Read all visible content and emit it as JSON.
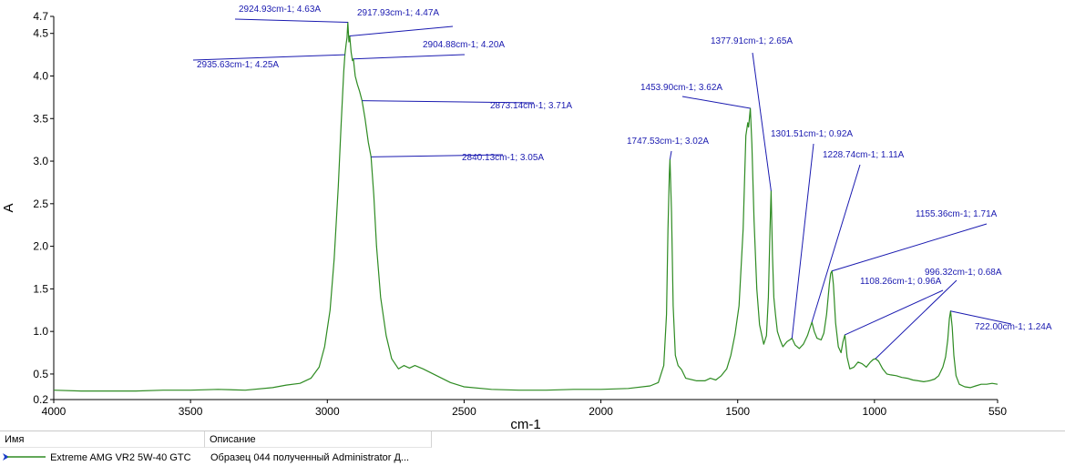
{
  "chart_data": {
    "type": "line",
    "xlabel": "cm-1",
    "ylabel": "A",
    "xlim": [
      4000,
      550
    ],
    "ylim": [
      0.2,
      4.7
    ],
    "x_ticks": [
      4000,
      3500,
      3000,
      2500,
      2000,
      1500,
      1000,
      550
    ],
    "y_ticks": [
      0.2,
      0.5,
      1.0,
      1.5,
      2.0,
      2.5,
      3.0,
      3.5,
      4.0,
      4.5,
      4.7
    ],
    "series": [
      {
        "name": "Extreme AMG VR2 5W-40 GTC",
        "color": "#2e8b22",
        "points": [
          [
            4000,
            0.31
          ],
          [
            3900,
            0.3
          ],
          [
            3800,
            0.3
          ],
          [
            3700,
            0.3
          ],
          [
            3600,
            0.31
          ],
          [
            3500,
            0.31
          ],
          [
            3400,
            0.32
          ],
          [
            3300,
            0.31
          ],
          [
            3200,
            0.34
          ],
          [
            3150,
            0.37
          ],
          [
            3100,
            0.39
          ],
          [
            3060,
            0.45
          ],
          [
            3030,
            0.58
          ],
          [
            3010,
            0.82
          ],
          [
            2990,
            1.25
          ],
          [
            2975,
            1.85
          ],
          [
            2960,
            2.7
          ],
          [
            2950,
            3.4
          ],
          [
            2940,
            4.05
          ],
          [
            2935.63,
            4.25
          ],
          [
            2931,
            4.38
          ],
          [
            2928,
            4.45
          ],
          [
            2924.93,
            4.63
          ],
          [
            2921,
            4.4
          ],
          [
            2917.93,
            4.47
          ],
          [
            2913,
            4.28
          ],
          [
            2908,
            4.18
          ],
          [
            2904.88,
            4.2
          ],
          [
            2898,
            4.0
          ],
          [
            2890,
            3.9
          ],
          [
            2882,
            3.82
          ],
          [
            2873.14,
            3.71
          ],
          [
            2862,
            3.5
          ],
          [
            2850,
            3.22
          ],
          [
            2840.13,
            3.05
          ],
          [
            2830,
            2.6
          ],
          [
            2820,
            2.0
          ],
          [
            2805,
            1.4
          ],
          [
            2785,
            0.95
          ],
          [
            2765,
            0.68
          ],
          [
            2740,
            0.56
          ],
          [
            2720,
            0.6
          ],
          [
            2700,
            0.57
          ],
          [
            2680,
            0.6
          ],
          [
            2650,
            0.56
          ],
          [
            2600,
            0.48
          ],
          [
            2550,
            0.4
          ],
          [
            2500,
            0.35
          ],
          [
            2400,
            0.32
          ],
          [
            2300,
            0.31
          ],
          [
            2200,
            0.31
          ],
          [
            2100,
            0.32
          ],
          [
            2000,
            0.32
          ],
          [
            1900,
            0.33
          ],
          [
            1820,
            0.36
          ],
          [
            1790,
            0.4
          ],
          [
            1770,
            0.6
          ],
          [
            1760,
            1.2
          ],
          [
            1755,
            2.2
          ],
          [
            1750,
            2.85
          ],
          [
            1747.53,
            3.02
          ],
          [
            1742,
            2.4
          ],
          [
            1736,
            1.3
          ],
          [
            1728,
            0.72
          ],
          [
            1718,
            0.6
          ],
          [
            1705,
            0.55
          ],
          [
            1690,
            0.45
          ],
          [
            1650,
            0.42
          ],
          [
            1620,
            0.42
          ],
          [
            1600,
            0.45
          ],
          [
            1580,
            0.43
          ],
          [
            1560,
            0.48
          ],
          [
            1540,
            0.56
          ],
          [
            1525,
            0.72
          ],
          [
            1510,
            0.96
          ],
          [
            1495,
            1.3
          ],
          [
            1480,
            2.2
          ],
          [
            1470,
            3.3
          ],
          [
            1463,
            3.45
          ],
          [
            1460,
            3.4
          ],
          [
            1453.9,
            3.62
          ],
          [
            1448,
            3.2
          ],
          [
            1440,
            2.3
          ],
          [
            1430,
            1.5
          ],
          [
            1420,
            1.08
          ],
          [
            1405,
            0.85
          ],
          [
            1395,
            0.95
          ],
          [
            1388,
            1.4
          ],
          [
            1382,
            2.2
          ],
          [
            1377.91,
            2.65
          ],
          [
            1373,
            1.9
          ],
          [
            1368,
            1.4
          ],
          [
            1362,
            1.2
          ],
          [
            1355,
            1.0
          ],
          [
            1345,
            0.9
          ],
          [
            1335,
            0.82
          ],
          [
            1320,
            0.88
          ],
          [
            1310,
            0.9
          ],
          [
            1301.51,
            0.92
          ],
          [
            1290,
            0.84
          ],
          [
            1275,
            0.8
          ],
          [
            1260,
            0.85
          ],
          [
            1245,
            0.95
          ],
          [
            1235,
            1.05
          ],
          [
            1228.74,
            1.11
          ],
          [
            1220,
            1.0
          ],
          [
            1210,
            0.92
          ],
          [
            1195,
            0.9
          ],
          [
            1185,
            0.98
          ],
          [
            1175,
            1.2
          ],
          [
            1165,
            1.55
          ],
          [
            1160,
            1.68
          ],
          [
            1155.36,
            1.71
          ],
          [
            1150,
            1.55
          ],
          [
            1142,
            1.1
          ],
          [
            1132,
            0.82
          ],
          [
            1122,
            0.75
          ],
          [
            1115,
            0.88
          ],
          [
            1108.26,
            0.96
          ],
          [
            1100,
            0.7
          ],
          [
            1090,
            0.56
          ],
          [
            1075,
            0.58
          ],
          [
            1060,
            0.64
          ],
          [
            1045,
            0.62
          ],
          [
            1030,
            0.58
          ],
          [
            1015,
            0.64
          ],
          [
            1005,
            0.67
          ],
          [
            996.32,
            0.68
          ],
          [
            985,
            0.65
          ],
          [
            970,
            0.56
          ],
          [
            955,
            0.5
          ],
          [
            940,
            0.49
          ],
          [
            920,
            0.48
          ],
          [
            900,
            0.46
          ],
          [
            880,
            0.45
          ],
          [
            860,
            0.43
          ],
          [
            840,
            0.42
          ],
          [
            820,
            0.41
          ],
          [
            800,
            0.42
          ],
          [
            780,
            0.44
          ],
          [
            765,
            0.48
          ],
          [
            750,
            0.58
          ],
          [
            740,
            0.7
          ],
          [
            732,
            0.9
          ],
          [
            726,
            1.15
          ],
          [
            722.0,
            1.24
          ],
          [
            716,
            1.05
          ],
          [
            710,
            0.72
          ],
          [
            702,
            0.48
          ],
          [
            690,
            0.38
          ],
          [
            670,
            0.35
          ],
          [
            650,
            0.34
          ],
          [
            630,
            0.36
          ],
          [
            610,
            0.38
          ],
          [
            590,
            0.38
          ],
          [
            570,
            0.39
          ],
          [
            550,
            0.38
          ]
        ]
      }
    ],
    "annotations": [
      {
        "label": "2924.93cm-1; 4.63A",
        "x": 2924.93,
        "y": 4.63
      },
      {
        "label": "2917.93cm-1; 4.47A",
        "x": 2917.93,
        "y": 4.47
      },
      {
        "label": "2904.88cm-1; 4.20A",
        "x": 2904.88,
        "y": 4.2
      },
      {
        "label": "2935.63cm-1; 4.25A",
        "x": 2935.63,
        "y": 4.25
      },
      {
        "label": "2873.14cm-1; 3.71A",
        "x": 2873.14,
        "y": 3.71
      },
      {
        "label": "2840.13cm-1; 3.05A",
        "x": 2840.13,
        "y": 3.05
      },
      {
        "label": "1377.91cm-1; 2.65A",
        "x": 1377.91,
        "y": 2.65
      },
      {
        "label": "1453.90cm-1; 3.62A",
        "x": 1453.9,
        "y": 3.62
      },
      {
        "label": "1747.53cm-1; 3.02A",
        "x": 1747.53,
        "y": 3.02
      },
      {
        "label": "1301.51cm-1; 0.92A",
        "x": 1301.51,
        "y": 0.92
      },
      {
        "label": "1228.74cm-1; 1.11A",
        "x": 1228.74,
        "y": 1.11
      },
      {
        "label": "1155.36cm-1; 1.71A",
        "x": 1155.36,
        "y": 1.71
      },
      {
        "label": "1108.26cm-1; 0.96A",
        "x": 1108.26,
        "y": 0.96
      },
      {
        "label": "996.32cm-1; 0.68A",
        "x": 996.32,
        "y": 0.68
      },
      {
        "label": "722.00cm-1; 1.24A",
        "x": 722.0,
        "y": 1.24
      }
    ],
    "grid": false,
    "line_color": "#2e8b22",
    "annotation_color": "#1a1ab0"
  },
  "legend": {
    "columns": [
      "Имя",
      "Описание"
    ],
    "rows": [
      {
        "name": "Extreme AMG VR2 5W-40 GTC",
        "description": "Образец 044 полученный Administrator Д..."
      }
    ]
  }
}
